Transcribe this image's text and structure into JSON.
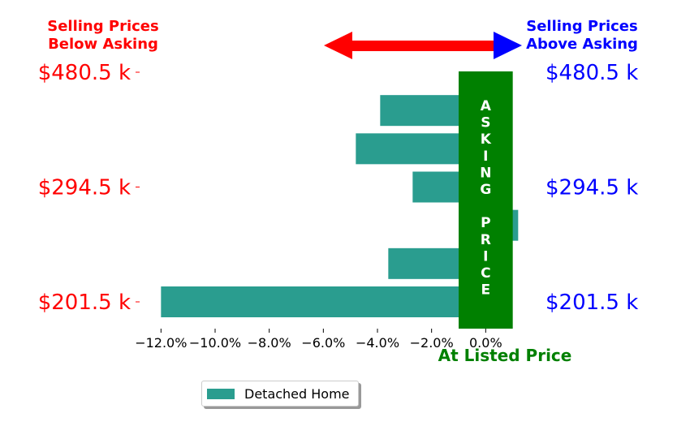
{
  "chart_data": {
    "type": "bar",
    "orientation": "horizontal",
    "categories": [
      "$201.5 k",
      "",
      "",
      "$294.5 k",
      "",
      "",
      "$480.5 k"
    ],
    "series": [
      {
        "name": "Detached Home",
        "color": "#2a9d8f",
        "values": [
          -12.0,
          -3.6,
          1.2,
          -2.7,
          -4.8,
          -3.9,
          null
        ]
      }
    ],
    "xlim": [
      -13.0,
      1.4
    ],
    "xticks": [
      -12,
      -10,
      -8,
      -6,
      -4,
      -2,
      0
    ],
    "xtick_labels": [
      "−12.0%",
      "−10.0%",
      "−8.0%",
      "−6.0%",
      "−4.0%",
      "−2.0%",
      "0.0%"
    ],
    "left_labels": [
      "$201.5 k",
      "$294.5 k",
      "$480.5 k"
    ],
    "right_labels": [
      "$201.5 k",
      "$294.5 k",
      "$480.5 k"
    ],
    "left_label_color": "#ff0000",
    "right_label_color": "#0000ff",
    "band": {
      "text_top": "ASKING",
      "text_bottom": "PRICE",
      "xmin": -1.0,
      "xmax": 1.0,
      "color": "#008000"
    },
    "xlabel": "At Listed Price",
    "xlabel_color": "#008000",
    "header_left": {
      "line1": "Selling Prices",
      "line2": "Below Asking",
      "color": "#ff0000"
    },
    "header_right": {
      "line1": "Selling Prices",
      "line2": "Above Asking",
      "color": "#0000ff"
    },
    "arrow_left_color": "#ff0000",
    "arrow_right_color": "#0000ff",
    "grid": false,
    "legend_position": "bottom-left"
  },
  "legend": {
    "label": "Detached Home",
    "color": "#2a9d8f"
  }
}
